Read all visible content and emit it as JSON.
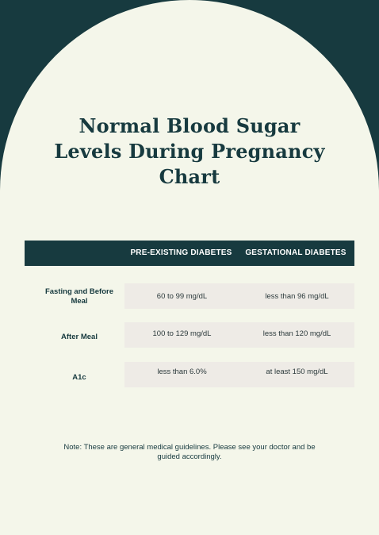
{
  "title": "Normal Blood Sugar Levels During Pregnancy Chart",
  "table": {
    "headers": {
      "pre_existing": "PRE-EXISTING DIABETES",
      "gestational": "GESTATIONAL DIABETES"
    },
    "rows": [
      {
        "label": "Fasting and Before Meal",
        "pre_existing": "60 to 99 mg/dL",
        "gestational": "less than 96 mg/dL"
      },
      {
        "label": "After Meal",
        "pre_existing": "100 to 129 mg/dL",
        "gestational": "less than 120 mg/dL"
      },
      {
        "label": "A1c",
        "pre_existing": "less than 6.0%",
        "gestational": "at least 150 mg/dL"
      }
    ]
  },
  "note": "Note: These are general medical guidelines. Please see your doctor and be guided accordingly.",
  "colors": {
    "dark_teal": "#173a3f",
    "cream": "#f4f6ea",
    "cell_bg": "#eeebe6"
  }
}
